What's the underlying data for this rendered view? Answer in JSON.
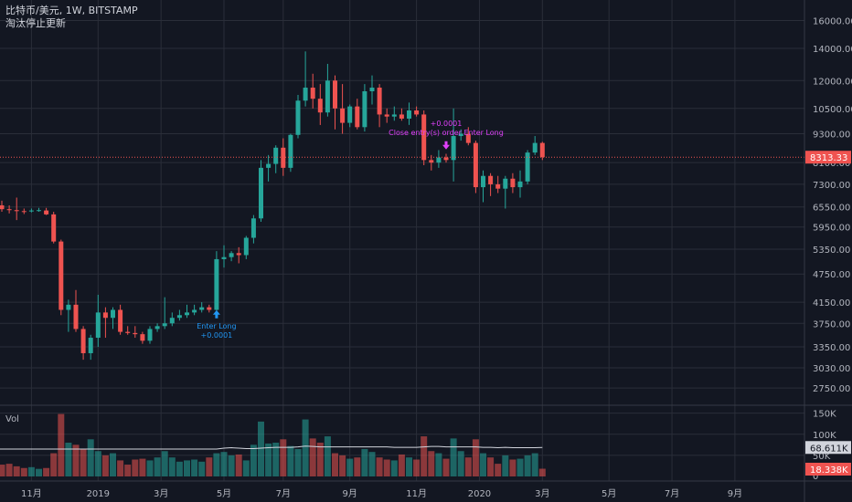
{
  "header": {
    "symbol_line": "比特币/美元, 1W, BITSTAMP",
    "status_line": "淘汰停止更新"
  },
  "colors": {
    "background": "#131722",
    "grid": "#2a2e39",
    "up": "#26a69a",
    "down": "#ef5350",
    "text": "#b2b5be",
    "price_line": "#ef5350",
    "signal_long": "#2196f3",
    "signal_close": "#e040fb",
    "vol_ma": "#d1d4dc"
  },
  "chart_data": {
    "type": "candlestick",
    "interval": "1W",
    "y_axis": {
      "scale": "log",
      "ylim": [
        2600,
        17500
      ],
      "ticks": [
        2750,
        3030,
        3350,
        3750,
        4150,
        4750,
        5350,
        5950,
        6550,
        7300,
        8100,
        9300,
        10500,
        12000,
        14000,
        16000
      ],
      "tick_labels": [
        "2750.00",
        "3030.00",
        "3350.00",
        "3750.00",
        "4150.00",
        "4750.00",
        "5350.00",
        "5950.00",
        "6550.00",
        "7300.00",
        "8100.00",
        "9300.00",
        "10500.00",
        "12000.00",
        "14000.00",
        "16000.00"
      ]
    },
    "x_axis": {
      "tick_labels": [
        "11月",
        "2019",
        "3月",
        "5月",
        "7月",
        "9月",
        "11月",
        "2020",
        "3月",
        "5月",
        "7月",
        "9月"
      ],
      "tick_bar_index": [
        4,
        13,
        21.5,
        30,
        38,
        47,
        56,
        64.5,
        73,
        82,
        90.5,
        99
      ]
    },
    "last_price": 8313.33,
    "last_price_label": "8313.33",
    "candles": [
      {
        "o": 6600,
        "h": 6750,
        "l": 6400,
        "c": 6480
      },
      {
        "o": 6480,
        "h": 6600,
        "l": 6350,
        "c": 6450
      },
      {
        "o": 6450,
        "h": 6850,
        "l": 6150,
        "c": 6420
      },
      {
        "o": 6420,
        "h": 6500,
        "l": 6330,
        "c": 6410
      },
      {
        "o": 6410,
        "h": 6500,
        "l": 6380,
        "c": 6440
      },
      {
        "o": 6440,
        "h": 6520,
        "l": 6400,
        "c": 6450
      },
      {
        "o": 6440,
        "h": 6520,
        "l": 6300,
        "c": 6320
      },
      {
        "o": 6320,
        "h": 6400,
        "l": 5500,
        "c": 5550
      },
      {
        "o": 5550,
        "h": 5600,
        "l": 3900,
        "c": 4000
      },
      {
        "o": 4000,
        "h": 4200,
        "l": 3600,
        "c": 4100
      },
      {
        "o": 4100,
        "h": 4400,
        "l": 3600,
        "c": 3650
      },
      {
        "o": 3650,
        "h": 3700,
        "l": 3150,
        "c": 3250
      },
      {
        "o": 3250,
        "h": 3550,
        "l": 3150,
        "c": 3500
      },
      {
        "o": 3500,
        "h": 4300,
        "l": 3350,
        "c": 3950
      },
      {
        "o": 3950,
        "h": 4050,
        "l": 3500,
        "c": 3850
      },
      {
        "o": 3850,
        "h": 4050,
        "l": 3650,
        "c": 4000
      },
      {
        "o": 4000,
        "h": 4100,
        "l": 3550,
        "c": 3600
      },
      {
        "o": 3600,
        "h": 3700,
        "l": 3550,
        "c": 3580
      },
      {
        "o": 3580,
        "h": 3700,
        "l": 3500,
        "c": 3560
      },
      {
        "o": 3560,
        "h": 3600,
        "l": 3400,
        "c": 3450
      },
      {
        "o": 3450,
        "h": 3700,
        "l": 3400,
        "c": 3650
      },
      {
        "o": 3650,
        "h": 3750,
        "l": 3600,
        "c": 3700
      },
      {
        "o": 3700,
        "h": 4250,
        "l": 3650,
        "c": 3750
      },
      {
        "o": 3750,
        "h": 3950,
        "l": 3700,
        "c": 3850
      },
      {
        "o": 3850,
        "h": 4000,
        "l": 3800,
        "c": 3900
      },
      {
        "o": 3900,
        "h": 4100,
        "l": 3850,
        "c": 3950
      },
      {
        "o": 3950,
        "h": 4100,
        "l": 3900,
        "c": 4000
      },
      {
        "o": 4000,
        "h": 4150,
        "l": 3950,
        "c": 4050
      },
      {
        "o": 4050,
        "h": 4100,
        "l": 3950,
        "c": 4000
      },
      {
        "o": 4000,
        "h": 5300,
        "l": 3990,
        "c": 5100
      },
      {
        "o": 5100,
        "h": 5450,
        "l": 4900,
        "c": 5150
      },
      {
        "o": 5150,
        "h": 5300,
        "l": 5050,
        "c": 5250
      },
      {
        "o": 5250,
        "h": 5400,
        "l": 5000,
        "c": 5200
      },
      {
        "o": 5200,
        "h": 5700,
        "l": 5100,
        "c": 5650
      },
      {
        "o": 5650,
        "h": 6300,
        "l": 5500,
        "c": 6200
      },
      {
        "o": 6200,
        "h": 8200,
        "l": 6100,
        "c": 7900
      },
      {
        "o": 7900,
        "h": 8400,
        "l": 7400,
        "c": 8050
      },
      {
        "o": 8050,
        "h": 8800,
        "l": 7700,
        "c": 8700
      },
      {
        "o": 8700,
        "h": 9100,
        "l": 7600,
        "c": 7900
      },
      {
        "o": 7900,
        "h": 9300,
        "l": 7750,
        "c": 9250
      },
      {
        "o": 9250,
        "h": 11200,
        "l": 9100,
        "c": 10900
      },
      {
        "o": 10900,
        "h": 13800,
        "l": 10600,
        "c": 11600
      },
      {
        "o": 11600,
        "h": 12400,
        "l": 10500,
        "c": 11000
      },
      {
        "o": 11000,
        "h": 11800,
        "l": 9700,
        "c": 10300
      },
      {
        "o": 10300,
        "h": 13000,
        "l": 10100,
        "c": 12000
      },
      {
        "o": 12000,
        "h": 12300,
        "l": 9500,
        "c": 10500
      },
      {
        "o": 10500,
        "h": 11800,
        "l": 9300,
        "c": 9800
      },
      {
        "o": 9800,
        "h": 10700,
        "l": 9600,
        "c": 10600
      },
      {
        "o": 10600,
        "h": 11000,
        "l": 9500,
        "c": 9600
      },
      {
        "o": 9600,
        "h": 11800,
        "l": 9400,
        "c": 11400
      },
      {
        "o": 11400,
        "h": 12300,
        "l": 10700,
        "c": 11600
      },
      {
        "o": 11600,
        "h": 11800,
        "l": 9600,
        "c": 10200
      },
      {
        "o": 10200,
        "h": 10500,
        "l": 9800,
        "c": 10100
      },
      {
        "o": 10100,
        "h": 10600,
        "l": 9900,
        "c": 10200
      },
      {
        "o": 10200,
        "h": 10500,
        "l": 9900,
        "c": 10000
      },
      {
        "o": 10000,
        "h": 10800,
        "l": 9700,
        "c": 10400
      },
      {
        "o": 10400,
        "h": 10600,
        "l": 10100,
        "c": 10200
      },
      {
        "o": 10200,
        "h": 10400,
        "l": 8000,
        "c": 8200
      },
      {
        "o": 8200,
        "h": 8400,
        "l": 7800,
        "c": 8100
      },
      {
        "o": 8100,
        "h": 8600,
        "l": 7900,
        "c": 8300
      },
      {
        "o": 8300,
        "h": 8450,
        "l": 8100,
        "c": 8200
      },
      {
        "o": 8200,
        "h": 10500,
        "l": 7400,
        "c": 9200
      },
      {
        "o": 9200,
        "h": 9500,
        "l": 9000,
        "c": 9300
      },
      {
        "o": 9300,
        "h": 9600,
        "l": 8800,
        "c": 8900
      },
      {
        "o": 8900,
        "h": 9000,
        "l": 7000,
        "c": 7200
      },
      {
        "o": 7200,
        "h": 7800,
        "l": 6700,
        "c": 7600
      },
      {
        "o": 7600,
        "h": 7700,
        "l": 6900,
        "c": 7300
      },
      {
        "o": 7300,
        "h": 7600,
        "l": 7000,
        "c": 7150
      },
      {
        "o": 7150,
        "h": 7600,
        "l": 6500,
        "c": 7500
      },
      {
        "o": 7500,
        "h": 7700,
        "l": 7000,
        "c": 7200
      },
      {
        "o": 7200,
        "h": 7800,
        "l": 6850,
        "c": 7400
      },
      {
        "o": 7400,
        "h": 8600,
        "l": 7300,
        "c": 8500
      },
      {
        "o": 8500,
        "h": 9200,
        "l": 8400,
        "c": 8900
      },
      {
        "o": 8900,
        "h": 8950,
        "l": 8200,
        "c": 8313
      }
    ],
    "volume": {
      "label": "Vol",
      "ylim": [
        0,
        160000
      ],
      "ticks": [
        0,
        50000,
        100000,
        150000
      ],
      "tick_labels": [
        "0",
        "50K",
        "100K",
        "150K"
      ],
      "ma_label": "68.611K",
      "ma_value": 68611,
      "last_label": "18.338K",
      "last_value": 18338,
      "values": [
        28000,
        30000,
        24000,
        20000,
        22000,
        18000,
        20000,
        55000,
        148000,
        80000,
        75000,
        65000,
        88000,
        60000,
        50000,
        55000,
        38000,
        28000,
        40000,
        42000,
        38000,
        45000,
        60000,
        45000,
        35000,
        38000,
        40000,
        35000,
        45000,
        55000,
        58000,
        50000,
        52000,
        38000,
        75000,
        130000,
        78000,
        80000,
        88000,
        72000,
        65000,
        135000,
        90000,
        80000,
        95000,
        55000,
        50000,
        42000,
        45000,
        65000,
        58000,
        45000,
        40000,
        38000,
        52000,
        45000,
        40000,
        95000,
        60000,
        55000,
        42000,
        90000,
        60000,
        45000,
        88000,
        55000,
        45000,
        30000,
        50000,
        40000,
        42000,
        50000,
        55000,
        18338
      ]
    },
    "volume_ma": [
      65000,
      65000,
      65000,
      65000,
      65000,
      65000,
      65000,
      65000,
      65000,
      65000,
      65000,
      65000,
      65000,
      65000,
      65000,
      65000,
      65000,
      65000,
      65000,
      65000,
      65000,
      65000,
      65000,
      65000,
      65000,
      65000,
      65000,
      65000,
      65000,
      65000,
      67000,
      68000,
      67000,
      66000,
      66000,
      67000,
      68000,
      69000,
      69000,
      69000,
      70000,
      72000,
      71000,
      70000,
      70000,
      70000,
      70000,
      70000,
      70000,
      70000,
      70000,
      70000,
      70000,
      69000,
      69000,
      69000,
      69000,
      70000,
      71000,
      71000,
      70000,
      70000,
      70000,
      70000,
      70000,
      69000,
      69000,
      68000,
      69000,
      68000,
      68000,
      68000,
      68000,
      68611
    ],
    "annotations": [
      {
        "bar": 29,
        "y": 4030,
        "dir": "down",
        "color_key": "signal_long",
        "lines": [
          "Enter Long",
          "+0.0001"
        ]
      },
      {
        "bar": 60,
        "y": 8550,
        "dir": "up",
        "color_key": "signal_close",
        "lines": [
          "+0.0001",
          "Close entry(s) order Enter Long"
        ]
      }
    ]
  }
}
